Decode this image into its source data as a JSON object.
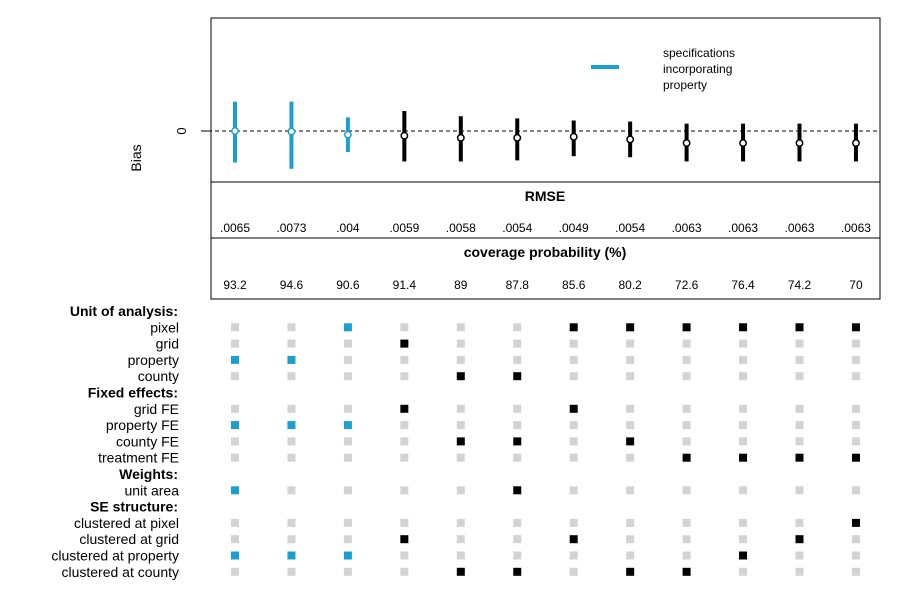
{
  "chart_data": {
    "type": "scatter",
    "ylabel": "Bias",
    "y_tick_label": "0",
    "legend": {
      "label_lines": [
        "specifications",
        "incorporating",
        "property"
      ],
      "color": "#1a9fd0",
      "placement": "top-right"
    },
    "colors": {
      "highlight": "#1a9fd0",
      "default": "#000000",
      "inactive": "#d3d3d3"
    },
    "specifications": [
      {
        "bias": 0.0,
        "ci": [
          -0.03,
          0.028
        ],
        "highlight": true
      },
      {
        "bias": -0.0005,
        "ci": [
          -0.036,
          0.028
        ],
        "highlight": true
      },
      {
        "bias": -0.0035,
        "ci": [
          -0.02,
          0.013
        ],
        "highlight": true
      },
      {
        "bias": -0.0045,
        "ci": [
          -0.029,
          0.019
        ],
        "highlight": false
      },
      {
        "bias": -0.0065,
        "ci": [
          -0.029,
          0.014
        ],
        "highlight": false
      },
      {
        "bias": -0.0065,
        "ci": [
          -0.028,
          0.012
        ],
        "highlight": false
      },
      {
        "bias": -0.0055,
        "ci": [
          -0.024,
          0.01
        ],
        "highlight": false
      },
      {
        "bias": -0.008,
        "ci": [
          -0.025,
          0.009
        ],
        "highlight": false
      },
      {
        "bias": -0.0115,
        "ci": [
          -0.029,
          0.007
        ],
        "highlight": false
      },
      {
        "bias": -0.0115,
        "ci": [
          -0.029,
          0.007
        ],
        "highlight": false
      },
      {
        "bias": -0.0115,
        "ci": [
          -0.029,
          0.007
        ],
        "highlight": false
      },
      {
        "bias": -0.0115,
        "ci": [
          -0.029,
          0.007
        ],
        "highlight": false
      }
    ],
    "rmse": {
      "title": "RMSE",
      "values": [
        ".0065",
        ".0073",
        ".004",
        ".0059",
        ".0058",
        ".0054",
        ".0049",
        ".0054",
        ".0063",
        ".0063",
        ".0063",
        ".0063"
      ]
    },
    "coverage": {
      "title": "coverage probability (%)",
      "values": [
        "93.2",
        "94.6",
        "90.6",
        "91.4",
        "89",
        "87.8",
        "85.6",
        "80.2",
        "72.6",
        "76.4",
        "74.2",
        "70"
      ]
    },
    "indicator_groups": [
      {
        "title": "Unit of analysis:",
        "rows": [
          {
            "label": "pixel",
            "on": [
              0,
              0,
              1,
              0,
              0,
              0,
              1,
              1,
              1,
              1,
              1,
              1
            ]
          },
          {
            "label": "grid",
            "on": [
              0,
              0,
              0,
              1,
              0,
              0,
              0,
              0,
              0,
              0,
              0,
              0
            ]
          },
          {
            "label": "property",
            "on": [
              1,
              1,
              0,
              0,
              0,
              0,
              0,
              0,
              0,
              0,
              0,
              0
            ]
          },
          {
            "label": "county",
            "on": [
              0,
              0,
              0,
              0,
              1,
              1,
              0,
              0,
              0,
              0,
              0,
              0
            ]
          }
        ]
      },
      {
        "title": "Fixed effects:",
        "rows": [
          {
            "label": "grid FE",
            "on": [
              0,
              0,
              0,
              1,
              0,
              0,
              1,
              0,
              0,
              0,
              0,
              0
            ]
          },
          {
            "label": "property FE",
            "on": [
              1,
              1,
              1,
              0,
              0,
              0,
              0,
              0,
              0,
              0,
              0,
              0
            ]
          },
          {
            "label": "county FE",
            "on": [
              0,
              0,
              0,
              0,
              1,
              1,
              0,
              1,
              0,
              0,
              0,
              0
            ]
          },
          {
            "label": "treatment FE",
            "on": [
              0,
              0,
              0,
              0,
              0,
              0,
              0,
              0,
              1,
              1,
              1,
              1
            ]
          }
        ]
      },
      {
        "title": "Weights:",
        "rows": [
          {
            "label": "unit area",
            "on": [
              1,
              0,
              0,
              0,
              0,
              1,
              0,
              0,
              0,
              0,
              0,
              0
            ]
          }
        ]
      },
      {
        "title": "SE structure:",
        "rows": [
          {
            "label": "clustered at pixel",
            "on": [
              0,
              0,
              0,
              0,
              0,
              0,
              0,
              0,
              0,
              0,
              0,
              1
            ]
          },
          {
            "label": "clustered at grid",
            "on": [
              0,
              0,
              0,
              1,
              0,
              0,
              1,
              0,
              0,
              0,
              1,
              0
            ]
          },
          {
            "label": "clustered at property",
            "on": [
              1,
              1,
              1,
              0,
              0,
              0,
              0,
              0,
              0,
              1,
              0,
              0
            ]
          },
          {
            "label": "clustered at county",
            "on": [
              0,
              0,
              0,
              0,
              1,
              1,
              0,
              1,
              1,
              0,
              0,
              0
            ]
          }
        ]
      }
    ]
  }
}
